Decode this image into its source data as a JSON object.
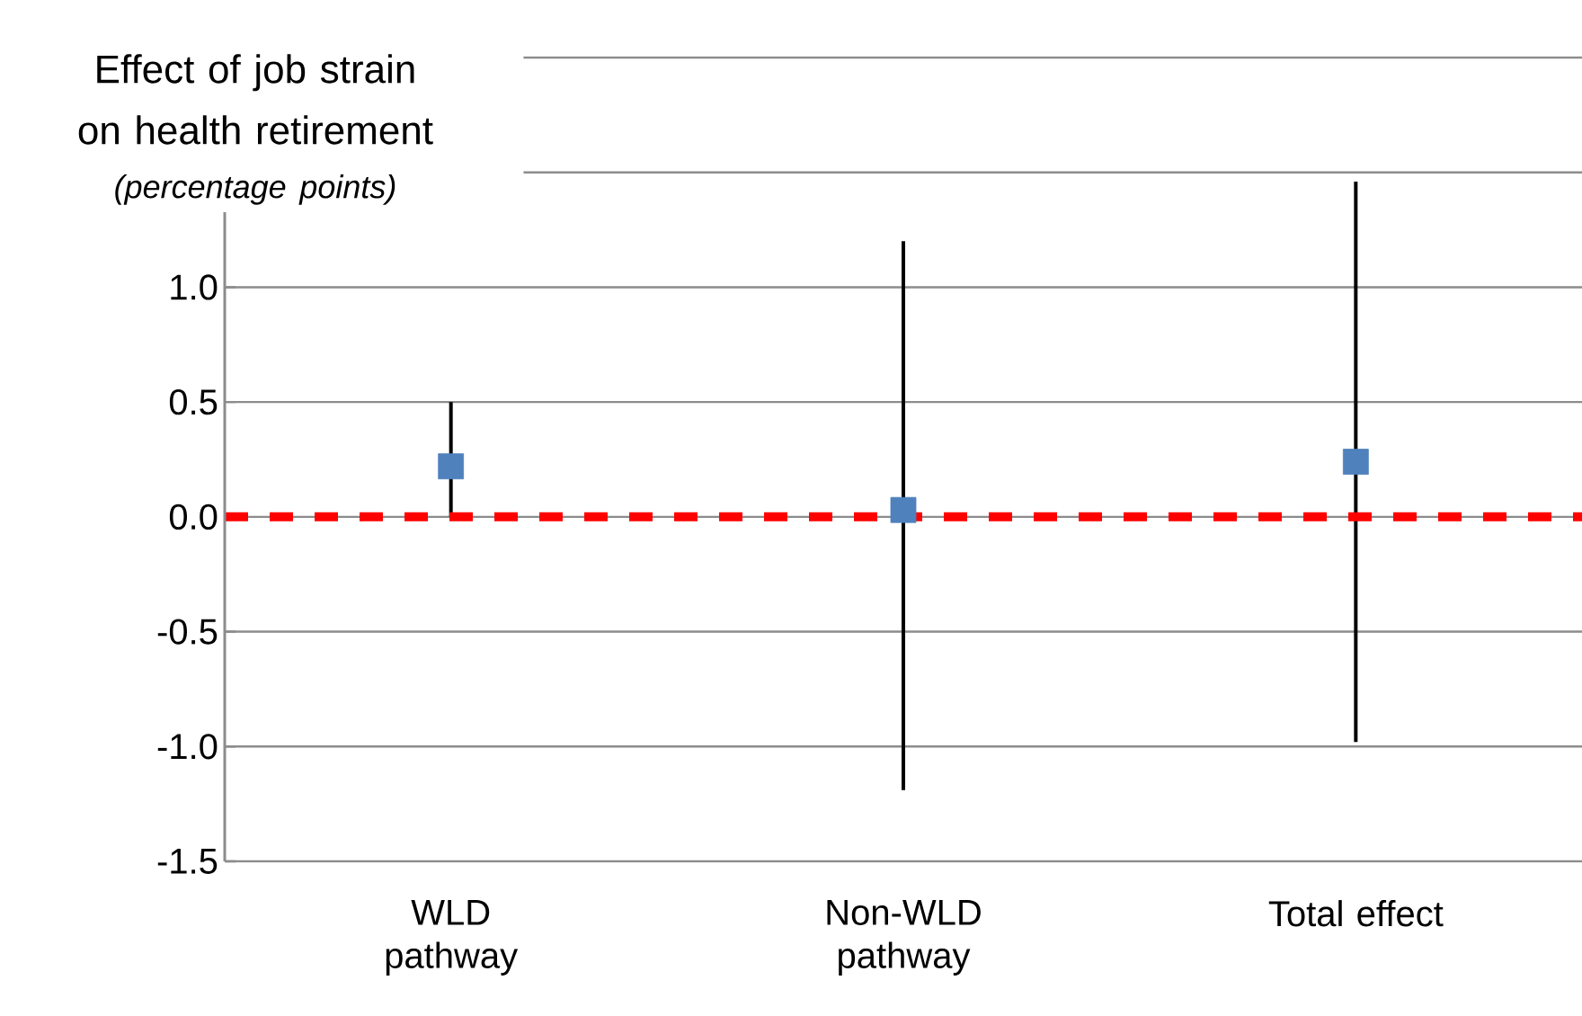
{
  "chart_data": {
    "type": "scatter",
    "title": "Effect of job strain on health retirement",
    "subtitle": "(percentage points)",
    "categories": [
      "WLD pathway",
      "Non-WLD pathway",
      "Total effect"
    ],
    "series": [
      {
        "color": "#4f81bd",
        "values": [
          0.22,
          0.03,
          0.24
        ],
        "errors": [
          [
            0.0,
            0.5
          ],
          [
            -1.19,
            1.2
          ],
          [
            -0.98,
            1.46
          ]
        ]
      }
    ],
    "marker": "square",
    "ylim": [
      -1.5,
      2.0
    ],
    "yticks": [
      -1.5,
      {
        "value": -1,
        "label": "-1.0"
      },
      -0.5,
      {
        "value": 0,
        "label": "0.0"
      },
      0.5,
      {
        "value": 1,
        "label": "1.0"
      },
      {
        "value": 1.5,
        "label": null
      },
      {
        "value": 2,
        "label": null
      }
    ],
    "ref_lines": [
      {
        "axis": "y",
        "value": 0,
        "color": "#ff0000",
        "line_style": "dashed"
      }
    ],
    "grid": "y"
  }
}
